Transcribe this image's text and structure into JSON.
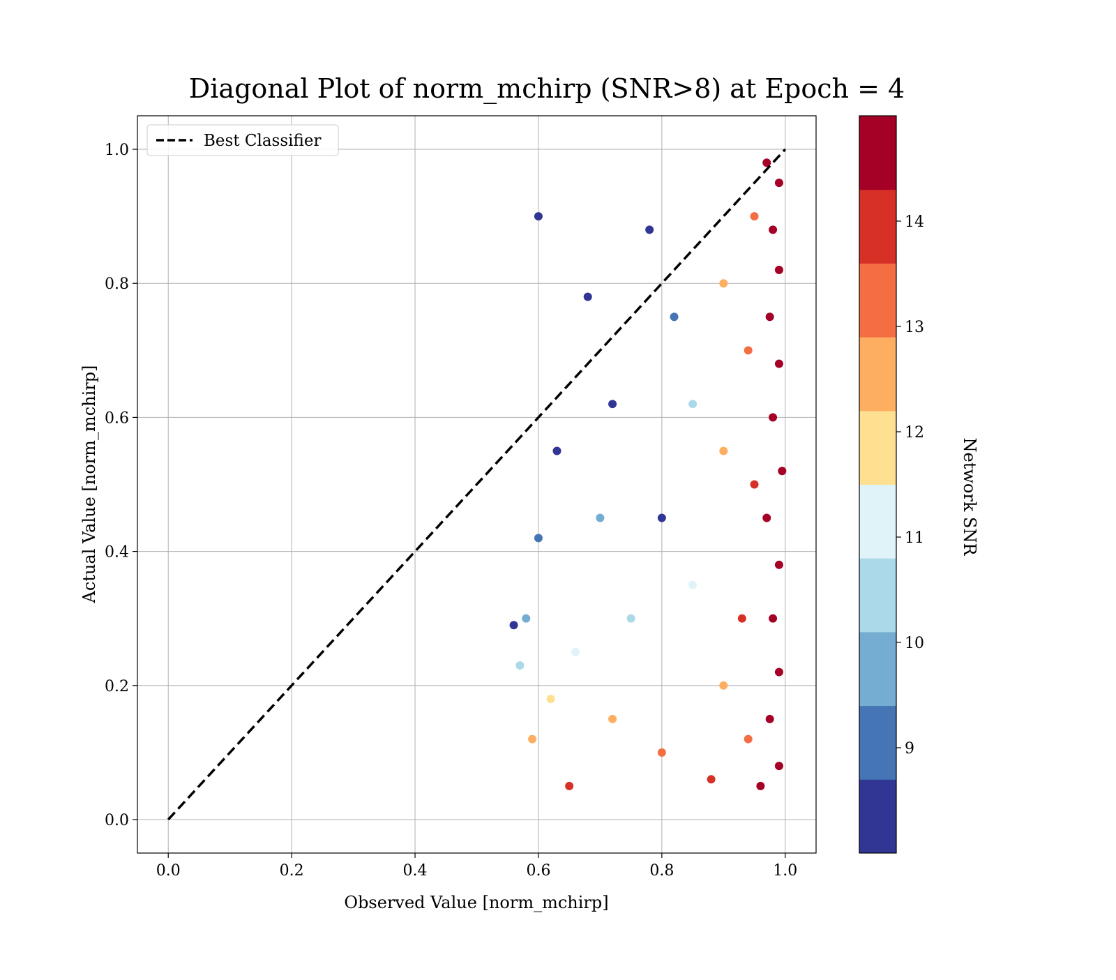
{
  "chart_data": {
    "type": "scatter",
    "title": "Diagonal Plot of norm_mchirp (SNR>8) at Epoch = 4",
    "xlabel": "Observed Value [norm_mchirp]",
    "ylabel": "Actual Value [norm_mchirp]",
    "xlim": [
      -0.05,
      1.05
    ],
    "ylim": [
      -0.05,
      1.05
    ],
    "x_ticks": [
      "0.0",
      "0.2",
      "0.4",
      "0.6",
      "0.8",
      "1.0"
    ],
    "y_ticks": [
      "0.0",
      "0.2",
      "0.4",
      "0.6",
      "0.8",
      "1.0"
    ],
    "grid": true,
    "legend": {
      "position": "top-left",
      "entries": [
        {
          "label": "Best Classifier",
          "style": "dashed",
          "color": "#000000"
        }
      ]
    },
    "reference_line": {
      "label": "Best Classifier",
      "x": [
        0.0,
        1.0
      ],
      "y": [
        0.0,
        1.0
      ]
    },
    "colorbar": {
      "label": "Network SNR",
      "range": [
        8,
        15
      ],
      "ticks": [
        "9",
        "10",
        "11",
        "12",
        "13",
        "14"
      ],
      "bins": [
        {
          "from": 8.0,
          "to": 8.7,
          "color": "#313695"
        },
        {
          "from": 8.7,
          "to": 9.4,
          "color": "#4575b4"
        },
        {
          "from": 9.4,
          "to": 10.1,
          "color": "#74add1"
        },
        {
          "from": 10.1,
          "to": 10.8,
          "color": "#abd9e9"
        },
        {
          "from": 10.8,
          "to": 11.5,
          "color": "#e0f3f8"
        },
        {
          "from": 11.5,
          "to": 12.2,
          "color": "#fee090"
        },
        {
          "from": 12.2,
          "to": 12.9,
          "color": "#fdae61"
        },
        {
          "from": 12.9,
          "to": 13.6,
          "color": "#f46d43"
        },
        {
          "from": 13.6,
          "to": 14.3,
          "color": "#d73027"
        },
        {
          "from": 14.3,
          "to": 15.0,
          "color": "#a50026"
        }
      ]
    },
    "series": [
      {
        "points": [
          [
            0.97,
            0.98,
            14.8
          ],
          [
            0.99,
            0.95,
            14.9
          ],
          [
            0.98,
            0.88,
            14.7
          ],
          [
            0.99,
            0.82,
            14.8
          ],
          [
            0.975,
            0.75,
            14.6
          ],
          [
            0.99,
            0.68,
            14.9
          ],
          [
            0.98,
            0.6,
            14.8
          ],
          [
            0.995,
            0.52,
            14.9
          ],
          [
            0.97,
            0.45,
            14.5
          ],
          [
            0.99,
            0.38,
            14.8
          ],
          [
            0.98,
            0.3,
            14.9
          ],
          [
            0.99,
            0.22,
            14.7
          ],
          [
            0.975,
            0.15,
            14.8
          ],
          [
            0.99,
            0.08,
            14.9
          ],
          [
            0.96,
            0.05,
            14.6
          ],
          [
            0.95,
            0.9,
            13.4
          ],
          [
            0.94,
            0.7,
            13.2
          ],
          [
            0.95,
            0.5,
            13.8
          ],
          [
            0.93,
            0.3,
            13.6
          ],
          [
            0.94,
            0.12,
            13.1
          ],
          [
            0.9,
            0.8,
            12.5
          ],
          [
            0.9,
            0.55,
            12.2
          ],
          [
            0.9,
            0.2,
            12.8
          ],
          [
            0.88,
            0.06,
            13.9
          ],
          [
            0.85,
            0.62,
            10.5
          ],
          [
            0.85,
            0.35,
            11.2
          ],
          [
            0.82,
            0.75,
            9.2
          ],
          [
            0.8,
            0.45,
            8.6
          ],
          [
            0.8,
            0.1,
            13.5
          ],
          [
            0.78,
            0.88,
            8.4
          ],
          [
            0.75,
            0.3,
            10.6
          ],
          [
            0.72,
            0.62,
            8.3
          ],
          [
            0.72,
            0.15,
            12.3
          ],
          [
            0.7,
            0.45,
            9.8
          ],
          [
            0.68,
            0.78,
            8.5
          ],
          [
            0.66,
            0.25,
            10.9
          ],
          [
            0.65,
            0.05,
            13.7
          ],
          [
            0.63,
            0.55,
            8.2
          ],
          [
            0.62,
            0.18,
            11.8
          ],
          [
            0.6,
            0.42,
            8.9
          ],
          [
            0.59,
            0.12,
            12.6
          ],
          [
            0.58,
            0.3,
            9.6
          ],
          [
            0.57,
            0.23,
            10.2
          ],
          [
            0.56,
            0.29,
            8.4
          ],
          [
            0.6,
            0.9,
            8.3
          ]
        ]
      }
    ]
  }
}
